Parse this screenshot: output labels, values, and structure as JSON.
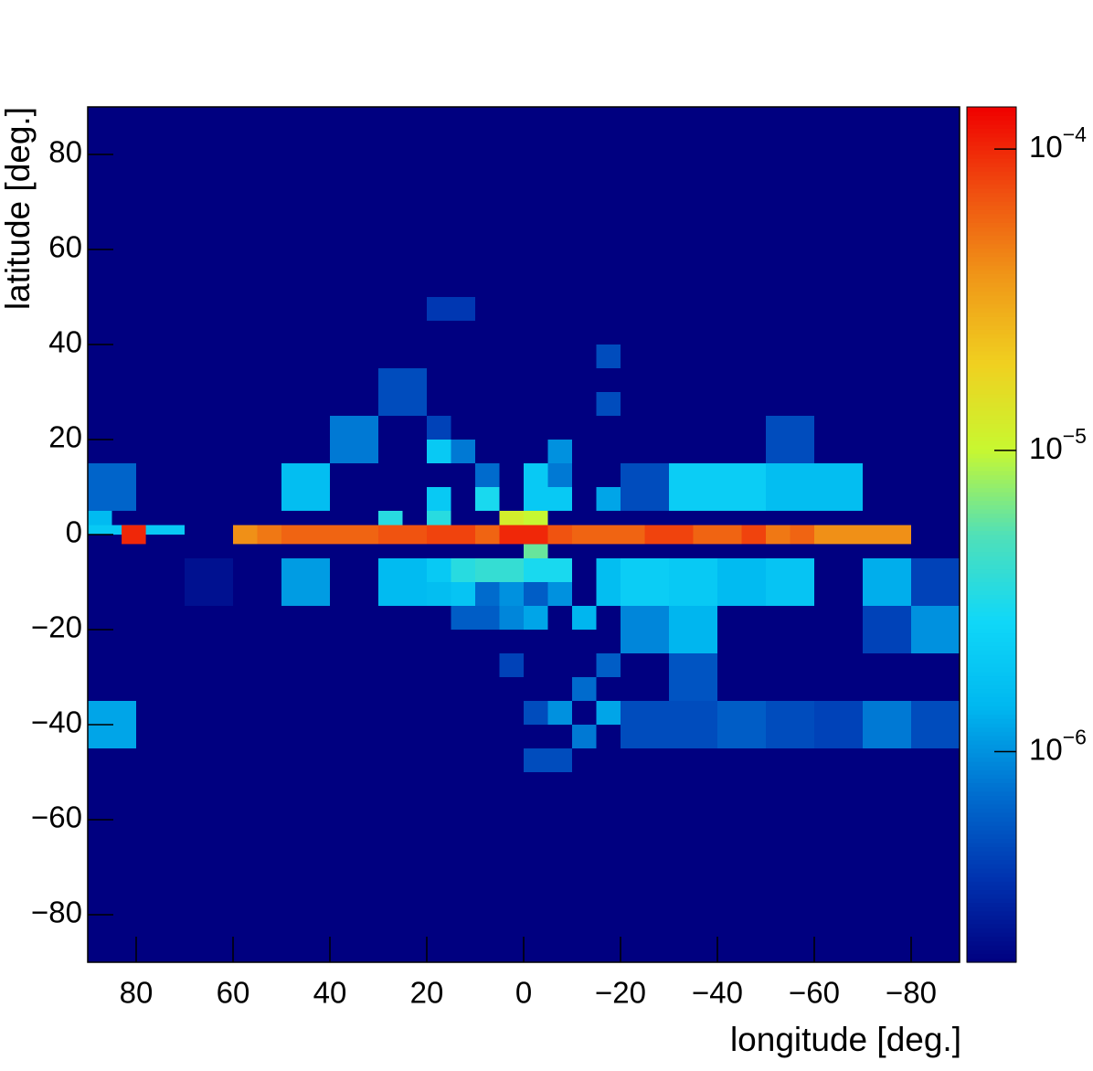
{
  "chart_data": {
    "type": "heatmap",
    "x_label": "longitude [deg.]",
    "y_label": "latitude [deg.]",
    "xlim": [
      90,
      -90
    ],
    "ylim": [
      -90,
      90
    ],
    "zlim": [
      2e-07,
      0.000138
    ],
    "z_log": true,
    "xticks": [
      80,
      60,
      40,
      20,
      0,
      {
        "value": -20,
        "label": "−20"
      },
      {
        "value": -40,
        "label": "−40"
      },
      {
        "value": -60,
        "label": "−60"
      },
      {
        "value": -80,
        "label": "−80"
      }
    ],
    "yticks": [
      {
        "value": -80,
        "label": "−80"
      },
      {
        "value": -60,
        "label": "−60"
      },
      {
        "value": -40,
        "label": "−40"
      },
      {
        "value": -20,
        "label": "−20"
      },
      0,
      20,
      40,
      60,
      80
    ],
    "zticks": [
      {
        "value": 1e-06,
        "label": "10",
        "exponent": "−6"
      },
      {
        "value": 1e-05,
        "label": "10",
        "exponent": "−5"
      },
      {
        "value": 0.0001,
        "label": "10",
        "exponent": "−4"
      }
    ],
    "colormap": [
      "#000080",
      "#0033b0",
      "#0070d0",
      "#00b8f0",
      "#10d8f8",
      "#50e0b8",
      "#c8f830",
      "#f0d020",
      "#f09818",
      "#f05010",
      "#f00000"
    ],
    "cells": [
      {
        "x": [
          90,
          80
        ],
        "y": [
          5,
          15
        ],
        "value": 6.5e-07
      },
      {
        "x": [
          90,
          80
        ],
        "y": [
          -45,
          -35
        ],
        "value": 1.2e-06
      },
      {
        "x": [
          90,
          85
        ],
        "y": [
          0,
          5
        ],
        "value": 1.5e-06
      },
      {
        "x": [
          70,
          60
        ],
        "y": [
          -15,
          -5
        ],
        "value": 2.5e-07
      },
      {
        "x": [
          50,
          40
        ],
        "y": [
          5,
          15
        ],
        "value": 1.6e-06
      },
      {
        "x": [
          50,
          40
        ],
        "y": [
          -15,
          -5
        ],
        "value": 1.1e-06
      },
      {
        "x": [
          40,
          30
        ],
        "y": [
          15,
          25
        ],
        "value": 8e-07
      },
      {
        "x": [
          30,
          20
        ],
        "y": [
          25,
          35
        ],
        "value": 5e-07
      },
      {
        "x": [
          30,
          20
        ],
        "y": [
          -15,
          -5
        ],
        "value": 1.5e-06
      },
      {
        "x": [
          30,
          25
        ],
        "y": [
          0,
          5
        ],
        "value": 3.5e-06
      },
      {
        "x": [
          20,
          15
        ],
        "y": [
          -10,
          -5
        ],
        "value": 2e-06
      },
      {
        "x": [
          20,
          15
        ],
        "y": [
          -15,
          -10
        ],
        "value": 1.6e-06
      },
      {
        "x": [
          15,
          10
        ],
        "y": [
          -10,
          -5
        ],
        "value": 3.5e-06
      },
      {
        "x": [
          15,
          10
        ],
        "y": [
          -15,
          -10
        ],
        "value": 1.8e-06
      },
      {
        "x": [
          15,
          5
        ],
        "y": [
          -20,
          -15
        ],
        "value": 6e-07
      },
      {
        "x": [
          20,
          15
        ],
        "y": [
          15,
          20
        ],
        "value": 2e-06
      },
      {
        "x": [
          20,
          15
        ],
        "y": [
          20,
          25
        ],
        "value": 4.5e-07
      },
      {
        "x": [
          15,
          10
        ],
        "y": [
          15,
          20
        ],
        "value": 8e-07
      },
      {
        "x": [
          20,
          15
        ],
        "y": [
          5,
          10
        ],
        "value": 2e-06
      },
      {
        "x": [
          20,
          15
        ],
        "y": [
          0,
          5
        ],
        "value": 3.5e-06
      },
      {
        "x": [
          10,
          5
        ],
        "y": [
          5,
          10
        ],
        "value": 3e-06
      },
      {
        "x": [
          10,
          5
        ],
        "y": [
          10,
          15
        ],
        "value": 7e-07
      },
      {
        "x": [
          5,
          0
        ],
        "y": [
          0,
          5
        ],
        "value": 1.2e-05
      },
      {
        "x": [
          0,
          -5
        ],
        "y": [
          0,
          5
        ],
        "value": 1e-05
      },
      {
        "x": [
          0,
          -5
        ],
        "y": [
          5,
          15
        ],
        "value": 2e-06
      },
      {
        "x": [
          -5,
          -10
        ],
        "y": [
          5,
          10
        ],
        "value": 2e-06
      },
      {
        "x": [
          -5,
          -10
        ],
        "y": [
          15,
          20
        ],
        "value": 1e-06
      },
      {
        "x": [
          -5,
          -10
        ],
        "y": [
          10,
          15
        ],
        "value": 8e-07
      },
      {
        "x": [
          10,
          0
        ],
        "y": [
          -10,
          -5
        ],
        "value": 4e-06
      },
      {
        "x": [
          0,
          -10
        ],
        "y": [
          -10,
          -5
        ],
        "value": 3e-06
      },
      {
        "x": [
          0,
          -5
        ],
        "y": [
          -5,
          -2
        ],
        "value": 6e-06
      },
      {
        "x": [
          10,
          5
        ],
        "y": [
          -15,
          -10
        ],
        "value": 7e-07
      },
      {
        "x": [
          5,
          0
        ],
        "y": [
          -15,
          -10
        ],
        "value": 1e-06
      },
      {
        "x": [
          0,
          -5
        ],
        "y": [
          -15,
          -10
        ],
        "value": 6e-07
      },
      {
        "x": [
          -5,
          -10
        ],
        "y": [
          -15,
          -10
        ],
        "value": 1e-06
      },
      {
        "x": [
          5,
          0
        ],
        "y": [
          -20,
          -15
        ],
        "value": 9e-07
      },
      {
        "x": [
          0,
          -5
        ],
        "y": [
          -20,
          -15
        ],
        "value": 1.2e-06
      },
      {
        "x": [
          -10,
          -15
        ],
        "y": [
          -20,
          -15
        ],
        "value": 1.4e-06
      },
      {
        "x": [
          -15,
          -20
        ],
        "y": [
          -10,
          -5
        ],
        "value": 1.6e-06
      },
      {
        "x": [
          -15,
          -20
        ],
        "y": [
          -15,
          -10
        ],
        "value": 1.6e-06
      },
      {
        "x": [
          -20,
          -30
        ],
        "y": [
          -15,
          -5
        ],
        "value": 2.2e-06
      },
      {
        "x": [
          -20,
          -30
        ],
        "y": [
          -25,
          -15
        ],
        "value": 9e-07
      },
      {
        "x": [
          -30,
          -40
        ],
        "y": [
          -15,
          -5
        ],
        "value": 2e-06
      },
      {
        "x": [
          -30,
          -40
        ],
        "y": [
          -25,
          -15
        ],
        "value": 1.4e-06
      },
      {
        "x": [
          -30,
          -40
        ],
        "y": [
          -35,
          -25
        ],
        "value": 5.5e-07
      },
      {
        "x": [
          -40,
          -50
        ],
        "y": [
          -15,
          -5
        ],
        "value": 1.5e-06
      },
      {
        "x": [
          -50,
          -60
        ],
        "y": [
          -15,
          -5
        ],
        "value": 1.8e-06
      },
      {
        "x": [
          -70,
          -80
        ],
        "y": [
          -15,
          -5
        ],
        "value": 1.3e-06
      },
      {
        "x": [
          -70,
          -80
        ],
        "y": [
          -25,
          -15
        ],
        "value": 4.5e-07
      },
      {
        "x": [
          -80,
          -90
        ],
        "y": [
          -15,
          -5
        ],
        "value": 4.5e-07
      },
      {
        "x": [
          -80,
          -90
        ],
        "y": [
          -25,
          -15
        ],
        "value": 1e-06
      },
      {
        "x": [
          -20,
          -30
        ],
        "y": [
          5,
          15
        ],
        "value": 5e-07
      },
      {
        "x": [
          -30,
          -50
        ],
        "y": [
          5,
          15
        ],
        "value": 2.2e-06
      },
      {
        "x": [
          -50,
          -70
        ],
        "y": [
          5,
          15
        ],
        "value": 1.6e-06
      },
      {
        "x": [
          -50,
          -60
        ],
        "y": [
          15,
          25
        ],
        "value": 5e-07
      },
      {
        "x": [
          -15,
          -20
        ],
        "y": [
          5,
          10
        ],
        "value": 1.2e-06
      },
      {
        "x": [
          -15,
          -20
        ],
        "y": [
          25,
          30
        ],
        "value": 5e-07
      },
      {
        "x": [
          -15,
          -20
        ],
        "y": [
          35,
          40
        ],
        "value": 5e-07
      },
      {
        "x": [
          20,
          10
        ],
        "y": [
          45,
          50
        ],
        "value": 4e-07
      },
      {
        "x": [
          -20,
          -40
        ],
        "y": [
          -45,
          -35
        ],
        "value": 5e-07
      },
      {
        "x": [
          -40,
          -50
        ],
        "y": [
          -45,
          -35
        ],
        "value": 6e-07
      },
      {
        "x": [
          -50,
          -60
        ],
        "y": [
          -45,
          -35
        ],
        "value": 5e-07
      },
      {
        "x": [
          -60,
          -70
        ],
        "y": [
          -45,
          -35
        ],
        "value": 4.5e-07
      },
      {
        "x": [
          -70,
          -80
        ],
        "y": [
          -45,
          -35
        ],
        "value": 8e-07
      },
      {
        "x": [
          -80,
          -90
        ],
        "y": [
          -45,
          -35
        ],
        "value": 5e-07
      },
      {
        "x": [
          -15,
          -20
        ],
        "y": [
          -40,
          -35
        ],
        "value": 1.2e-06
      },
      {
        "x": [
          -15,
          -20
        ],
        "y": [
          -30,
          -25
        ],
        "value": 6e-07
      },
      {
        "x": [
          -10,
          -15
        ],
        "y": [
          -35,
          -30
        ],
        "value": 7e-07
      },
      {
        "x": [
          -10,
          -15
        ],
        "y": [
          -45,
          -40
        ],
        "value": 8e-07
      },
      {
        "x": [
          -5,
          -10
        ],
        "y": [
          -40,
          -35
        ],
        "value": 1e-06
      },
      {
        "x": [
          0,
          -5
        ],
        "y": [
          -40,
          -35
        ],
        "value": 5e-07
      },
      {
        "x": [
          0,
          -10
        ],
        "y": [
          -50,
          -45
        ],
        "value": 5e-07
      },
      {
        "x": [
          5,
          0
        ],
        "y": [
          -30,
          -25
        ],
        "value": 4.5e-07
      },
      {
        "x": [
          90,
          70
        ],
        "y": [
          0,
          2
        ],
        "value": 2e-06
      },
      {
        "x": [
          83,
          78
        ],
        "y": [
          -2,
          2
        ],
        "value": 0.0001
      },
      {
        "x": [
          60,
          55
        ],
        "y": [
          -2,
          2
        ],
        "value": 4e-05
      },
      {
        "x": [
          55,
          50
        ],
        "y": [
          -2,
          2
        ],
        "value": 5e-05
      },
      {
        "x": [
          50,
          45
        ],
        "y": [
          -2,
          2
        ],
        "value": 6e-05
      },
      {
        "x": [
          45,
          40
        ],
        "y": [
          -2,
          2
        ],
        "value": 6e-05
      },
      {
        "x": [
          40,
          35
        ],
        "y": [
          -2,
          2
        ],
        "value": 6e-05
      },
      {
        "x": [
          35,
          30
        ],
        "y": [
          -2,
          2
        ],
        "value": 6e-05
      },
      {
        "x": [
          30,
          25
        ],
        "y": [
          -2,
          2
        ],
        "value": 7e-05
      },
      {
        "x": [
          25,
          20
        ],
        "y": [
          -2,
          2
        ],
        "value": 7e-05
      },
      {
        "x": [
          20,
          15
        ],
        "y": [
          -2,
          2
        ],
        "value": 8e-05
      },
      {
        "x": [
          15,
          10
        ],
        "y": [
          -2,
          2
        ],
        "value": 8e-05
      },
      {
        "x": [
          10,
          5
        ],
        "y": [
          -2,
          2
        ],
        "value": 6e-05
      },
      {
        "x": [
          5,
          0
        ],
        "y": [
          -2,
          2
        ],
        "value": 0.0001
      },
      {
        "x": [
          0,
          -5
        ],
        "y": [
          -2,
          2
        ],
        "value": 0.0001
      },
      {
        "x": [
          -5,
          -10
        ],
        "y": [
          -2,
          2
        ],
        "value": 7e-05
      },
      {
        "x": [
          -10,
          -15
        ],
        "y": [
          -2,
          2
        ],
        "value": 6e-05
      },
      {
        "x": [
          -15,
          -20
        ],
        "y": [
          -2,
          2
        ],
        "value": 6e-05
      },
      {
        "x": [
          -20,
          -25
        ],
        "y": [
          -2,
          2
        ],
        "value": 6e-05
      },
      {
        "x": [
          -25,
          -30
        ],
        "y": [
          -2,
          2
        ],
        "value": 8e-05
      },
      {
        "x": [
          -30,
          -35
        ],
        "y": [
          -2,
          2
        ],
        "value": 8e-05
      },
      {
        "x": [
          -35,
          -40
        ],
        "y": [
          -2,
          2
        ],
        "value": 6e-05
      },
      {
        "x": [
          -40,
          -45
        ],
        "y": [
          -2,
          2
        ],
        "value": 6e-05
      },
      {
        "x": [
          -45,
          -50
        ],
        "y": [
          -2,
          2
        ],
        "value": 8e-05
      },
      {
        "x": [
          -50,
          -55
        ],
        "y": [
          -2,
          2
        ],
        "value": 5e-05
      },
      {
        "x": [
          -55,
          -60
        ],
        "y": [
          -2,
          2
        ],
        "value": 6e-05
      },
      {
        "x": [
          -60,
          -65
        ],
        "y": [
          -2,
          2
        ],
        "value": 4e-05
      },
      {
        "x": [
          -65,
          -70
        ],
        "y": [
          -2,
          2
        ],
        "value": 4e-05
      },
      {
        "x": [
          -70,
          -75
        ],
        "y": [
          -2,
          2
        ],
        "value": 4e-05
      },
      {
        "x": [
          -75,
          -80
        ],
        "y": [
          -2,
          2
        ],
        "value": 4e-05
      }
    ]
  }
}
